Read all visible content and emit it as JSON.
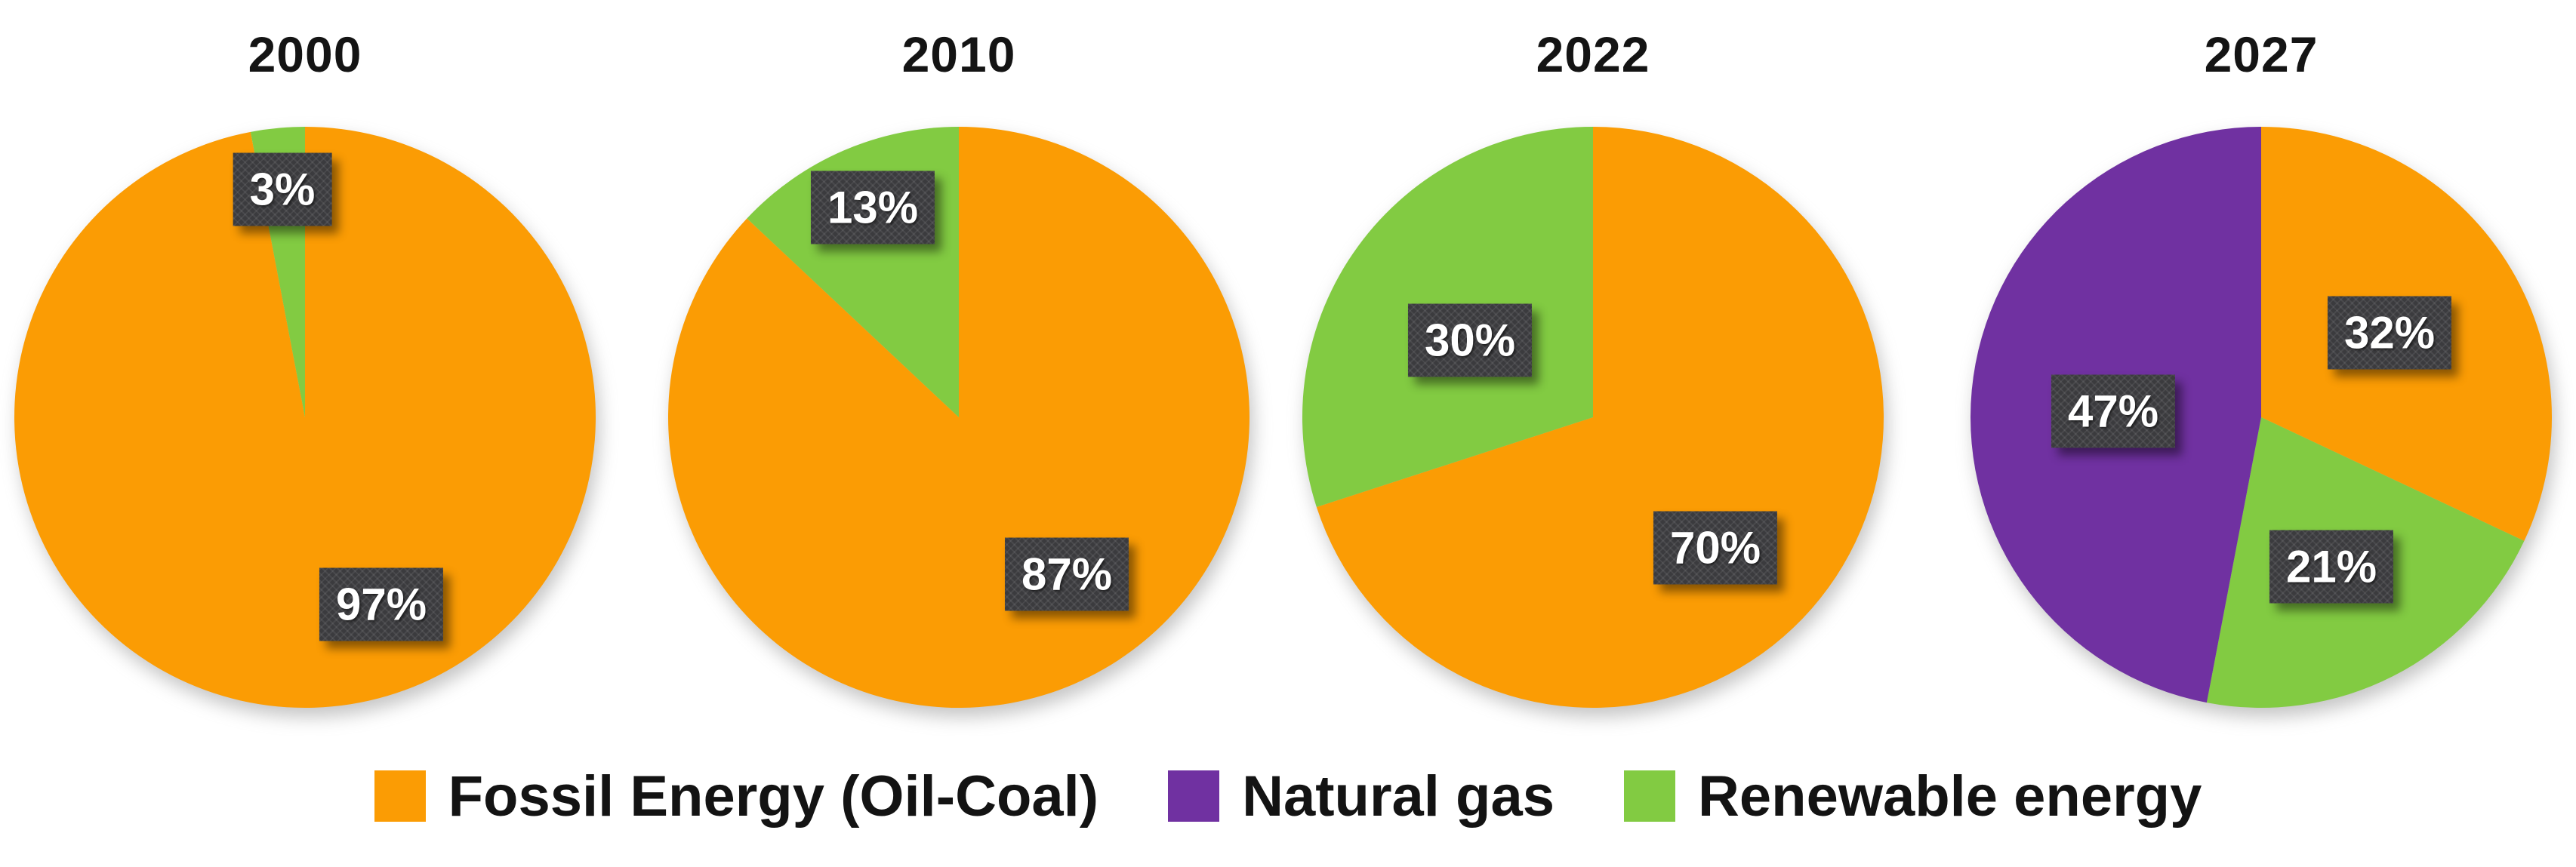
{
  "colors": {
    "fossil": "#FB9C04",
    "gas": "#7031A1",
    "renewable": "#82CB42",
    "label_box_bg": "#3B3B3E",
    "label_text": "#FFFFFF",
    "title_text": "#141414"
  },
  "legend": {
    "items": [
      {
        "key": "fossil",
        "label": "Fossil Energy (Oil-Coal)"
      },
      {
        "key": "gas",
        "label": "Natural gas"
      },
      {
        "key": "renewable",
        "label": "Renewable energy"
      }
    ]
  },
  "chart_data": {
    "type": "pie",
    "title": "",
    "layout": "four pies in a row; slices drawn clockwise starting at 12 o'clock; legend centered below",
    "pies": [
      {
        "title": "2000",
        "slices": [
          {
            "key": "fossil",
            "name": "Fossil Energy (Oil-Coal)",
            "value": 97,
            "label": "97%"
          },
          {
            "key": "renewable",
            "name": "Renewable energy",
            "value": 3,
            "label": "3%"
          }
        ]
      },
      {
        "title": "2010",
        "slices": [
          {
            "key": "fossil",
            "name": "Fossil Energy (Oil-Coal)",
            "value": 87,
            "label": "87%"
          },
          {
            "key": "renewable",
            "name": "Renewable energy",
            "value": 13,
            "label": "13%"
          }
        ]
      },
      {
        "title": "2022",
        "slices": [
          {
            "key": "fossil",
            "name": "Fossil Energy (Oil-Coal)",
            "value": 70,
            "label": "70%"
          },
          {
            "key": "renewable",
            "name": "Renewable energy",
            "value": 30,
            "label": "30%"
          }
        ]
      },
      {
        "title": "2027",
        "slices": [
          {
            "key": "fossil",
            "name": "Fossil Energy (Oil-Coal)",
            "value": 32,
            "label": "32%"
          },
          {
            "key": "renewable",
            "name": "Renewable energy",
            "value": 21,
            "label": "21%"
          },
          {
            "key": "gas",
            "name": "Natural gas",
            "value": 47,
            "label": "47%"
          }
        ]
      }
    ]
  }
}
